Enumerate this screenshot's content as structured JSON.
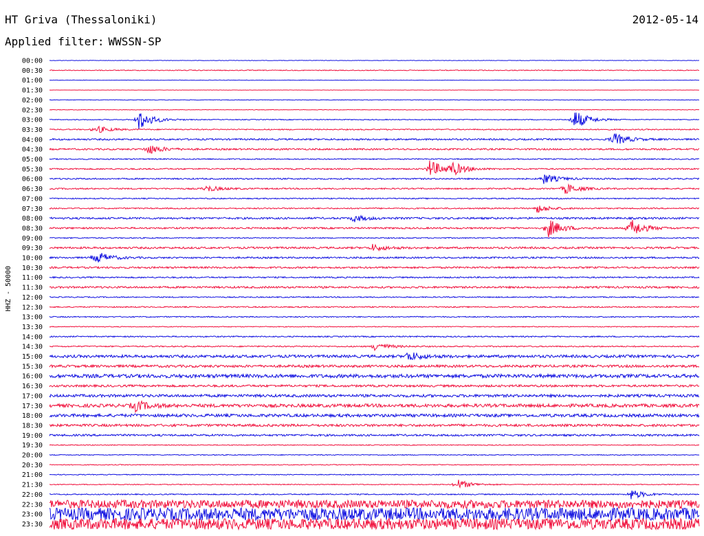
{
  "header": {
    "station": "HT Griva (Thessaloniki)",
    "date": "2012-05-14",
    "filter_label": "Applied filter:",
    "filter_value": "WWSSN-SP"
  },
  "chart_data": {
    "type": "line",
    "title": "",
    "ylabel": "HHZ - 50000",
    "colors": {
      "odd": "#1010e0",
      "even": "#f0103c"
    },
    "row_labels": [
      "00:00",
      "00:30",
      "01:00",
      "01:30",
      "02:00",
      "02:30",
      "03:00",
      "03:30",
      "04:00",
      "04:30",
      "05:00",
      "05:30",
      "06:00",
      "06:30",
      "07:00",
      "07:30",
      "08:00",
      "08:30",
      "09:00",
      "09:30",
      "10:00",
      "10:30",
      "11:00",
      "11:30",
      "12:00",
      "12:30",
      "13:00",
      "13:30",
      "14:00",
      "14:30",
      "15:00",
      "15:30",
      "16:00",
      "16:30",
      "17:00",
      "17:30",
      "18:00",
      "18:30",
      "19:00",
      "19:30",
      "20:00",
      "20:30",
      "21:00",
      "21:30",
      "22:00",
      "22:30",
      "23:00",
      "23:30"
    ],
    "noise_level": [
      0.3,
      0.6,
      0.3,
      0.2,
      0.4,
      0.4,
      0.6,
      0.8,
      1.2,
      1.2,
      0.8,
      1.0,
      1.0,
      1.0,
      0.8,
      0.9,
      1.4,
      1.2,
      0.8,
      1.4,
      1.2,
      1.3,
      1.0,
      1.4,
      0.8,
      0.9,
      0.8,
      0.6,
      0.9,
      0.9,
      2.0,
      1.8,
      2.6,
      1.6,
      2.0,
      2.4,
      2.2,
      1.8,
      1.4,
      0.6,
      0.6,
      0.6,
      0.6,
      0.6,
      0.8,
      6,
      9,
      8
    ],
    "events": [
      {
        "row": 6,
        "minute": 4.1,
        "amp": 16
      },
      {
        "row": 6,
        "minute": 24.2,
        "amp": 16
      },
      {
        "row": 7,
        "minute": 2.1,
        "amp": 6
      },
      {
        "row": 8,
        "minute": 26.0,
        "amp": 10
      },
      {
        "row": 9,
        "minute": 4.5,
        "amp": 8
      },
      {
        "row": 11,
        "minute": 17.5,
        "amp": 14
      },
      {
        "row": 11,
        "minute": 18.5,
        "amp": 10
      },
      {
        "row": 12,
        "minute": 22.8,
        "amp": 8
      },
      {
        "row": 13,
        "minute": 23.8,
        "amp": 8
      },
      {
        "row": 13,
        "minute": 7.2,
        "amp": 5
      },
      {
        "row": 15,
        "minute": 22.5,
        "amp": 6
      },
      {
        "row": 16,
        "minute": 14.0,
        "amp": 5
      },
      {
        "row": 17,
        "minute": 23.0,
        "amp": 14
      },
      {
        "row": 17,
        "minute": 26.8,
        "amp": 14
      },
      {
        "row": 19,
        "minute": 14.9,
        "amp": 5
      },
      {
        "row": 20,
        "minute": 2.1,
        "amp": 10
      },
      {
        "row": 29,
        "minute": 15.0,
        "amp": 7
      },
      {
        "row": 30,
        "minute": 16.5,
        "amp": 7
      },
      {
        "row": 35,
        "minute": 3.9,
        "amp": 8
      },
      {
        "row": 43,
        "minute": 18.8,
        "amp": 8
      },
      {
        "row": 44,
        "minute": 26.8,
        "amp": 8
      }
    ],
    "time_axis_minutes": [
      0,
      30
    ]
  }
}
